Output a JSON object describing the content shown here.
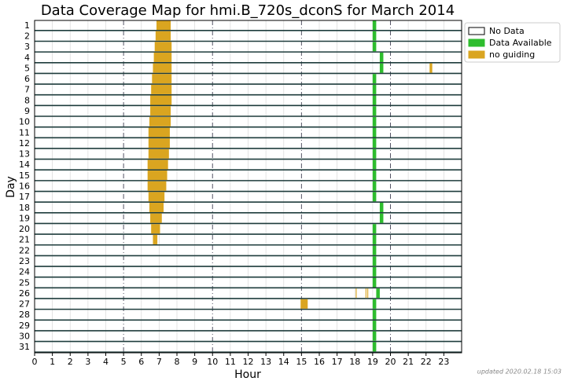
{
  "chart_data": {
    "type": "coverage",
    "title": "Data Coverage Map for hmi.B_720s_dconS for March 2014",
    "x_label": "Hour",
    "y_label": "Day",
    "footer": "updated 2020.02.18 15:03",
    "categories": [
      "1",
      "2",
      "3",
      "4",
      "5",
      "6",
      "7",
      "8",
      "9",
      "10",
      "11",
      "12",
      "13",
      "14",
      "15",
      "16",
      "17",
      "18",
      "19",
      "20",
      "21",
      "22",
      "23",
      "24",
      "25",
      "26",
      "27",
      "28",
      "29",
      "30",
      "31"
    ],
    "xlim": [
      0,
      24
    ],
    "xticks": [
      0,
      1,
      2,
      3,
      4,
      5,
      6,
      7,
      8,
      9,
      10,
      11,
      12,
      13,
      14,
      15,
      16,
      17,
      18,
      19,
      20,
      21,
      22,
      23
    ],
    "dashed_every": 5,
    "grid": true,
    "legend": "outside-upper-right",
    "series": [
      {
        "name": "No Data",
        "color": "#ffffff",
        "intervals": []
      },
      {
        "name": "Data Available",
        "color": "#2ebd2e",
        "intervals": [
          [
            1,
            19.0,
            19.2
          ],
          [
            2,
            19.0,
            19.2
          ],
          [
            3,
            19.0,
            19.2
          ],
          [
            4,
            19.4,
            19.6
          ],
          [
            5,
            19.4,
            19.6
          ],
          [
            6,
            19.0,
            19.2
          ],
          [
            7,
            19.0,
            19.2
          ],
          [
            8,
            19.0,
            19.2
          ],
          [
            9,
            19.0,
            19.2
          ],
          [
            10,
            19.0,
            19.2
          ],
          [
            11,
            19.0,
            19.2
          ],
          [
            12,
            19.0,
            19.2
          ],
          [
            13,
            19.0,
            19.2
          ],
          [
            14,
            19.0,
            19.2
          ],
          [
            15,
            19.0,
            19.2
          ],
          [
            16,
            19.0,
            19.2
          ],
          [
            17,
            19.0,
            19.2
          ],
          [
            18,
            19.4,
            19.6
          ],
          [
            19,
            19.4,
            19.6
          ],
          [
            20,
            19.0,
            19.2
          ],
          [
            21,
            19.0,
            19.2
          ],
          [
            22,
            19.0,
            19.2
          ],
          [
            23,
            19.0,
            19.2
          ],
          [
            24,
            19.0,
            19.2
          ],
          [
            25,
            19.0,
            19.2
          ],
          [
            26,
            19.2,
            19.4
          ],
          [
            27,
            19.0,
            19.2
          ],
          [
            28,
            19.0,
            19.2
          ],
          [
            29,
            19.0,
            19.2
          ],
          [
            30,
            19.0,
            19.2
          ],
          [
            31,
            19.0,
            19.2
          ]
        ]
      },
      {
        "name": "no guiding",
        "color": "#daa520",
        "intervals": [
          [
            1,
            6.85,
            7.65
          ],
          [
            2,
            6.8,
            7.65
          ],
          [
            3,
            6.75,
            7.7
          ],
          [
            4,
            6.7,
            7.7
          ],
          [
            5,
            6.65,
            7.7
          ],
          [
            6,
            6.6,
            7.7
          ],
          [
            7,
            6.55,
            7.7
          ],
          [
            8,
            6.5,
            7.7
          ],
          [
            9,
            6.5,
            7.65
          ],
          [
            10,
            6.45,
            7.65
          ],
          [
            11,
            6.4,
            7.6
          ],
          [
            12,
            6.4,
            7.6
          ],
          [
            13,
            6.4,
            7.55
          ],
          [
            14,
            6.35,
            7.5
          ],
          [
            15,
            6.35,
            7.45
          ],
          [
            16,
            6.35,
            7.4
          ],
          [
            17,
            6.4,
            7.3
          ],
          [
            18,
            6.45,
            7.25
          ],
          [
            19,
            6.5,
            7.15
          ],
          [
            20,
            6.55,
            7.05
          ],
          [
            21,
            6.65,
            6.9
          ],
          [
            5,
            22.2,
            22.35
          ],
          [
            26,
            18.05,
            18.1
          ],
          [
            26,
            18.6,
            18.65
          ],
          [
            26,
            18.7,
            18.75
          ],
          [
            27,
            14.95,
            15.35
          ]
        ]
      }
    ]
  }
}
